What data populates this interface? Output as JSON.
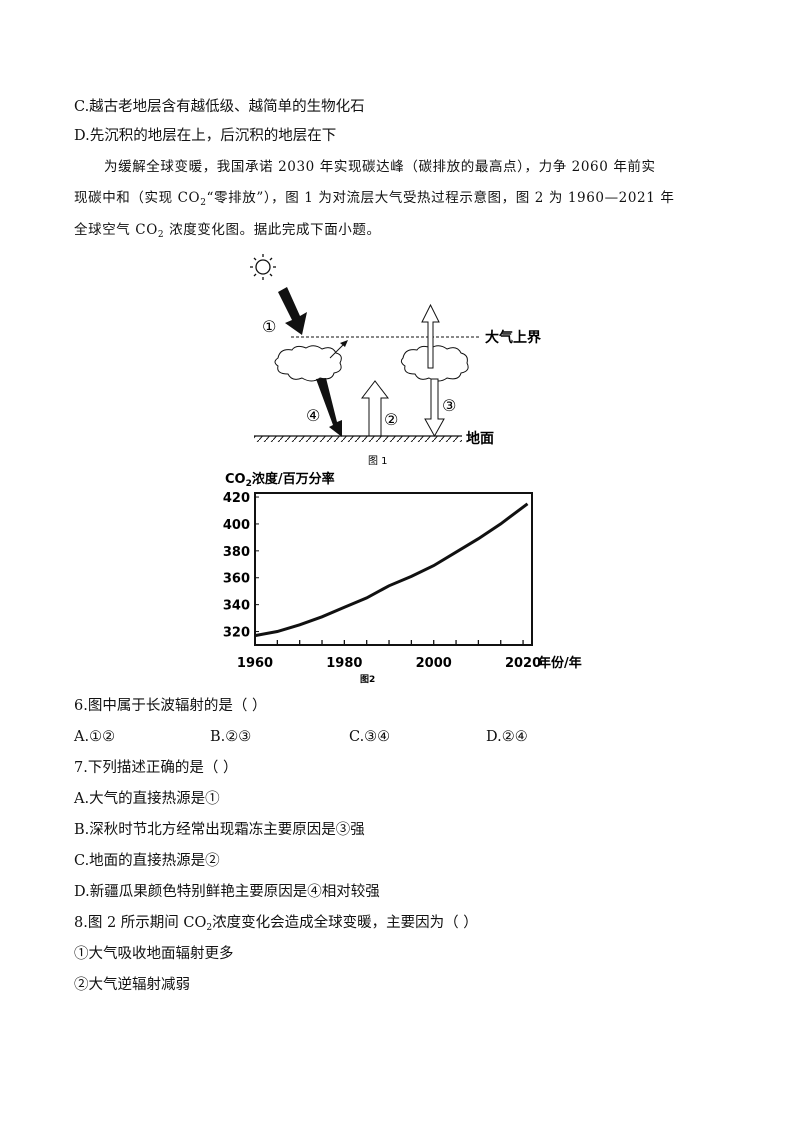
{
  "prev_options": {
    "c": "C.越古老地层含有越低级、越简单的生物化石",
    "d": "D.先沉积的地层在上，后沉积的地层在下"
  },
  "intro": {
    "line1": "为缓解全球变暖，我国承诺 2030 年实现碳达峰（碳排放的最高点），力争 2060 年前实",
    "line2_a": "现碳中和（实现 CO",
    "line2_sub": "2",
    "line2_b": "“零排放”），图 1 为对流层大气受热过程示意图，图 2 为 1960—2021 年",
    "line3_a": "全球空气 CO",
    "line3_sub": "2",
    "line3_b": " 浓度变化图。据此完成下面小题。"
  },
  "figure1": {
    "caption": "图 1",
    "top_of_atmosphere": "大气上界",
    "ground": "地面",
    "labels": [
      "①",
      "②",
      "③",
      "④"
    ]
  },
  "chart_data": {
    "type": "line",
    "title": "",
    "ylabel_a": "CO",
    "ylabel_sub": "2",
    "ylabel_b": "浓度/百万分率",
    "xlabel": "年份/年",
    "caption": "图2",
    "xlim": [
      1960,
      2022
    ],
    "ylim": [
      310,
      423
    ],
    "x_ticks": [
      "1960",
      "1980",
      "2000",
      "2020"
    ],
    "y_ticks": [
      "320",
      "340",
      "360",
      "380",
      "400",
      "420"
    ],
    "grid": false,
    "x": [
      1960,
      1965,
      1970,
      1975,
      1980,
      1985,
      1990,
      1995,
      2000,
      2005,
      2010,
      2015,
      2021
    ],
    "values": [
      317,
      320,
      325,
      331,
      338,
      345,
      354,
      361,
      369,
      379,
      389,
      400,
      415
    ]
  },
  "q6": {
    "stem": "6.图中属于长波辐射的是（   ）",
    "options": [
      "A.①②",
      "B.②③",
      "C.③④",
      "D.②④"
    ]
  },
  "q7": {
    "stem": "7.下列描述正确的是（   ）",
    "options": [
      "A.大气的直接热源是①",
      "B.深秋时节北方经常出现霜冻主要原因是③强",
      "C.地面的直接热源是②",
      "D.新疆瓜果颜色特别鲜艳主要原因是④相对较强"
    ]
  },
  "q8": {
    "stem_a": "8.图 2 所示期间 CO",
    "stem_sub": "2",
    "stem_b": "浓度变化会造成全球变暖，主要因为（   ）",
    "items": [
      "①大气吸收地面辐射更多",
      "②大气逆辐射减弱"
    ]
  }
}
